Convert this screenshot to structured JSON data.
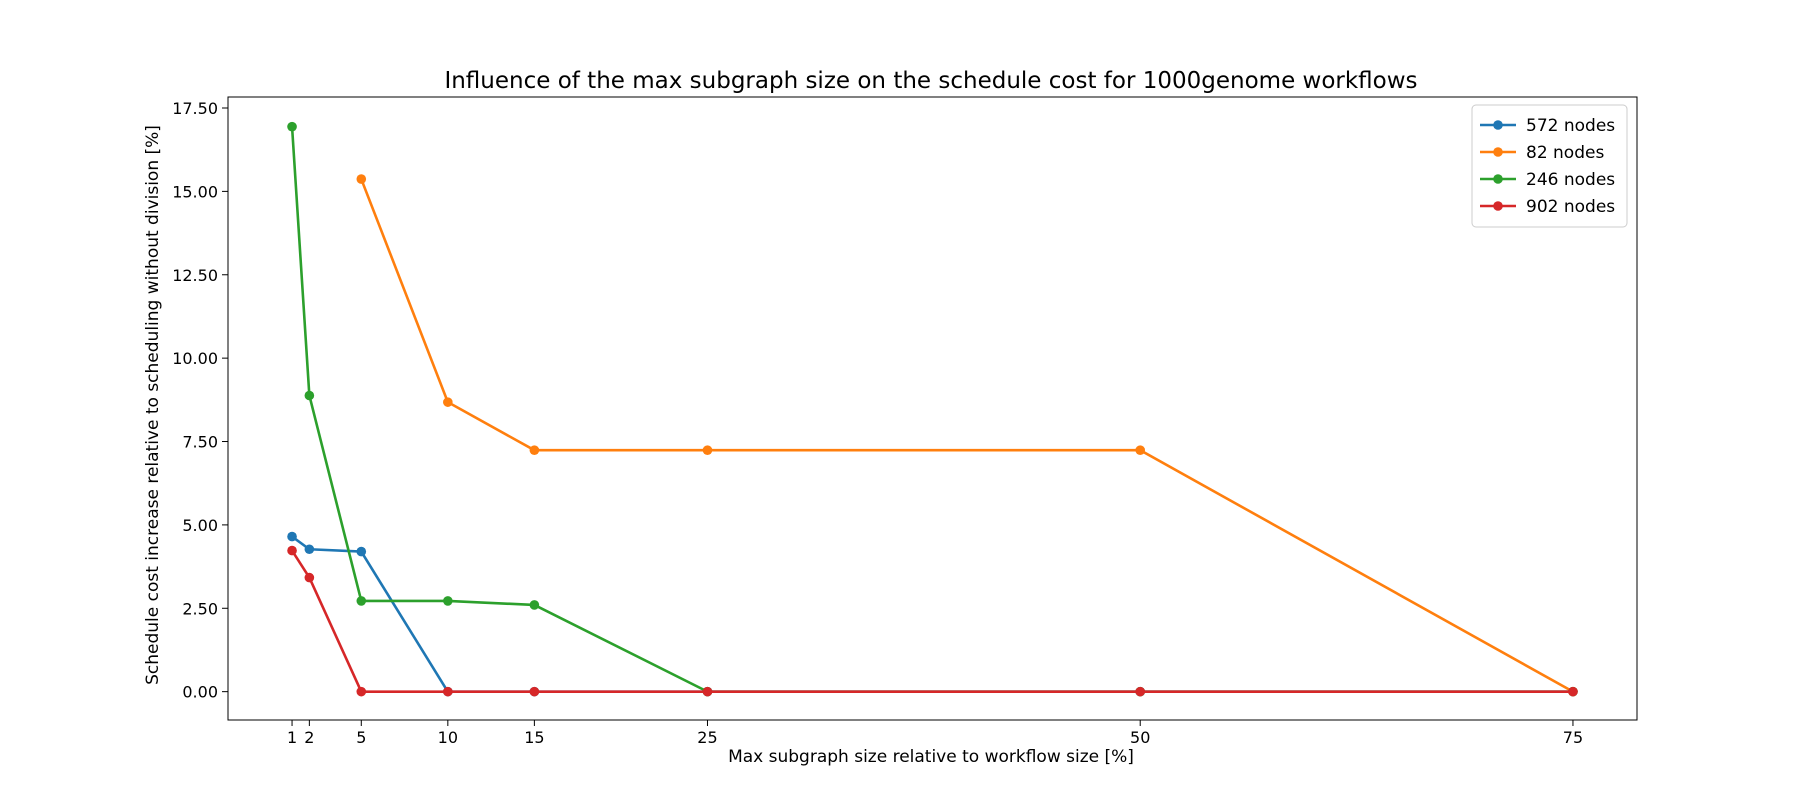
{
  "chart_data": {
    "type": "line",
    "title": "Influence of the max subgraph size on the schedule cost for 1000genome workflows",
    "xlabel": "Max subgraph size relative to workflow size [%]",
    "ylabel": "Schedule cost increase relative to scheduling without division [%]",
    "xlim": [
      -2.7,
      78.7
    ],
    "ylim": [
      -0.85,
      17.83
    ],
    "xticks": [
      1,
      2,
      5,
      10,
      15,
      25,
      50,
      75
    ],
    "xtick_labels": [
      "1",
      "2",
      "5",
      "10",
      "15",
      "25",
      "50",
      "75"
    ],
    "yticks": [
      0,
      2.5,
      5,
      7.5,
      10,
      12.5,
      15,
      17.5
    ],
    "ytick_labels": [
      "0.00",
      "2.50",
      "5.00",
      "7.50",
      "10.00",
      "12.50",
      "15.00",
      "17.50"
    ],
    "grid": false,
    "legend_position": "top-right",
    "series": [
      {
        "name": "572 nodes",
        "color": "#1f77b4",
        "x": [
          1,
          2,
          5,
          10,
          15,
          25,
          50,
          75
        ],
        "y": [
          4.65,
          4.27,
          4.2,
          0,
          0,
          0,
          0,
          0
        ]
      },
      {
        "name": "82 nodes",
        "color": "#ff7f0e",
        "x": [
          5,
          10,
          15,
          25,
          50,
          75
        ],
        "y": [
          15.37,
          8.68,
          7.24,
          7.24,
          7.24,
          0
        ]
      },
      {
        "name": "246 nodes",
        "color": "#2ca02c",
        "x": [
          1,
          2,
          5,
          10,
          15,
          25,
          50,
          75
        ],
        "y": [
          16.94,
          8.88,
          2.72,
          2.72,
          2.6,
          0,
          0,
          0
        ]
      },
      {
        "name": "902 nodes",
        "color": "#d62728",
        "x": [
          1,
          2,
          5,
          10,
          15,
          25,
          50,
          75
        ],
        "y": [
          4.23,
          3.42,
          0,
          0,
          0,
          0,
          0,
          0
        ]
      }
    ]
  }
}
